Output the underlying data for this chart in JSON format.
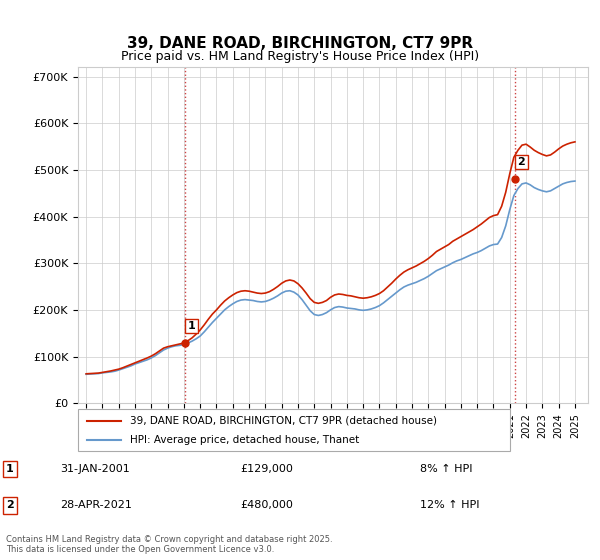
{
  "title": "39, DANE ROAD, BIRCHINGTON, CT7 9PR",
  "subtitle": "Price paid vs. HM Land Registry's House Price Index (HPI)",
  "ylabel_ticks": [
    "£0",
    "£100K",
    "£200K",
    "£300K",
    "£400K",
    "£500K",
    "£600K",
    "£700K"
  ],
  "ytick_values": [
    0,
    100000,
    200000,
    300000,
    400000,
    500000,
    600000,
    700000
  ],
  "ylim": [
    0,
    720000
  ],
  "xlim_start": 1994.5,
  "xlim_end": 2025.8,
  "xtick_years": [
    1995,
    1996,
    1997,
    1998,
    1999,
    2000,
    2001,
    2002,
    2003,
    2004,
    2005,
    2006,
    2007,
    2008,
    2009,
    2010,
    2011,
    2012,
    2013,
    2014,
    2015,
    2016,
    2017,
    2018,
    2019,
    2020,
    2021,
    2022,
    2023,
    2024,
    2025
  ],
  "hpi_color": "#6699cc",
  "price_color": "#cc2200",
  "marker_color_1": "#cc2200",
  "marker_color_2": "#cc2200",
  "sale1_x": 2001.08,
  "sale1_y": 129000,
  "sale1_label": "1",
  "sale2_x": 2021.33,
  "sale2_y": 480000,
  "sale2_label": "2",
  "vline_color": "#cc4444",
  "vline_style": ":",
  "grid_color": "#cccccc",
  "background_color": "#ffffff",
  "legend_line1": "39, DANE ROAD, BIRCHINGTON, CT7 9PR (detached house)",
  "legend_line2": "HPI: Average price, detached house, Thanet",
  "annotation1_date": "31-JAN-2001",
  "annotation1_price": "£129,000",
  "annotation1_hpi": "8% ↑ HPI",
  "annotation2_date": "28-APR-2021",
  "annotation2_price": "£480,000",
  "annotation2_hpi": "12% ↑ HPI",
  "footer": "Contains HM Land Registry data © Crown copyright and database right 2025.\nThis data is licensed under the Open Government Licence v3.0.",
  "hpi_data_x": [
    1995.0,
    1995.25,
    1995.5,
    1995.75,
    1996.0,
    1996.25,
    1996.5,
    1996.75,
    1997.0,
    1997.25,
    1997.5,
    1997.75,
    1998.0,
    1998.25,
    1998.5,
    1998.75,
    1999.0,
    1999.25,
    1999.5,
    1999.75,
    2000.0,
    2000.25,
    2000.5,
    2000.75,
    2001.0,
    2001.25,
    2001.5,
    2001.75,
    2002.0,
    2002.25,
    2002.5,
    2002.75,
    2003.0,
    2003.25,
    2003.5,
    2003.75,
    2004.0,
    2004.25,
    2004.5,
    2004.75,
    2005.0,
    2005.25,
    2005.5,
    2005.75,
    2006.0,
    2006.25,
    2006.5,
    2006.75,
    2007.0,
    2007.25,
    2007.5,
    2007.75,
    2008.0,
    2008.25,
    2008.5,
    2008.75,
    2009.0,
    2009.25,
    2009.5,
    2009.75,
    2010.0,
    2010.25,
    2010.5,
    2010.75,
    2011.0,
    2011.25,
    2011.5,
    2011.75,
    2012.0,
    2012.25,
    2012.5,
    2012.75,
    2013.0,
    2013.25,
    2013.5,
    2013.75,
    2014.0,
    2014.25,
    2014.5,
    2014.75,
    2015.0,
    2015.25,
    2015.5,
    2015.75,
    2016.0,
    2016.25,
    2016.5,
    2016.75,
    2017.0,
    2017.25,
    2017.5,
    2017.75,
    2018.0,
    2018.25,
    2018.5,
    2018.75,
    2019.0,
    2019.25,
    2019.5,
    2019.75,
    2020.0,
    2020.25,
    2020.5,
    2020.75,
    2021.0,
    2021.25,
    2021.5,
    2021.75,
    2022.0,
    2022.25,
    2022.5,
    2022.75,
    2023.0,
    2023.25,
    2023.5,
    2023.75,
    2024.0,
    2024.25,
    2024.5,
    2024.75,
    2025.0
  ],
  "hpi_data_y": [
    62000,
    62500,
    63000,
    63500,
    65000,
    66000,
    67000,
    68500,
    71000,
    74000,
    77000,
    80000,
    84000,
    87000,
    90000,
    93000,
    97000,
    102000,
    108000,
    114000,
    118000,
    121000,
    123000,
    124000,
    126000,
    129000,
    133000,
    138000,
    144000,
    153000,
    163000,
    173000,
    182000,
    191000,
    200000,
    207000,
    213000,
    218000,
    221000,
    222000,
    221000,
    220000,
    218000,
    217000,
    218000,
    221000,
    225000,
    230000,
    236000,
    240000,
    241000,
    238000,
    232000,
    222000,
    210000,
    198000,
    190000,
    188000,
    190000,
    194000,
    200000,
    205000,
    207000,
    206000,
    204000,
    203000,
    202000,
    200000,
    199000,
    200000,
    202000,
    205000,
    209000,
    215000,
    222000,
    229000,
    236000,
    243000,
    249000,
    253000,
    256000,
    259000,
    263000,
    267000,
    272000,
    278000,
    284000,
    288000,
    292000,
    296000,
    301000,
    305000,
    308000,
    312000,
    316000,
    320000,
    323000,
    327000,
    332000,
    337000,
    340000,
    341000,
    355000,
    380000,
    415000,
    445000,
    460000,
    470000,
    472000,
    468000,
    462000,
    458000,
    455000,
    453000,
    455000,
    460000,
    465000,
    470000,
    473000,
    475000,
    476000
  ],
  "price_data_x": [
    1995.0,
    1995.25,
    1995.5,
    1995.75,
    1996.0,
    1996.25,
    1996.5,
    1996.75,
    1997.0,
    1997.25,
    1997.5,
    1997.75,
    1998.0,
    1998.25,
    1998.5,
    1998.75,
    1999.0,
    1999.25,
    1999.5,
    1999.75,
    2000.0,
    2000.25,
    2000.5,
    2000.75,
    2001.0,
    2001.25,
    2001.5,
    2001.75,
    2002.0,
    2002.25,
    2002.5,
    2002.75,
    2003.0,
    2003.25,
    2003.5,
    2003.75,
    2004.0,
    2004.25,
    2004.5,
    2004.75,
    2005.0,
    2005.25,
    2005.5,
    2005.75,
    2006.0,
    2006.25,
    2006.5,
    2006.75,
    2007.0,
    2007.25,
    2007.5,
    2007.75,
    2008.0,
    2008.25,
    2008.5,
    2008.75,
    2009.0,
    2009.25,
    2009.5,
    2009.75,
    2010.0,
    2010.25,
    2010.5,
    2010.75,
    2011.0,
    2011.25,
    2011.5,
    2011.75,
    2012.0,
    2012.25,
    2012.5,
    2012.75,
    2013.0,
    2013.25,
    2013.5,
    2013.75,
    2014.0,
    2014.25,
    2014.5,
    2014.75,
    2015.0,
    2015.25,
    2015.5,
    2015.75,
    2016.0,
    2016.25,
    2016.5,
    2016.75,
    2017.0,
    2017.25,
    2017.5,
    2017.75,
    2018.0,
    2018.25,
    2018.5,
    2018.75,
    2019.0,
    2019.25,
    2019.5,
    2019.75,
    2020.0,
    2020.25,
    2020.5,
    2020.75,
    2021.0,
    2021.25,
    2021.5,
    2021.75,
    2022.0,
    2022.25,
    2022.5,
    2022.75,
    2023.0,
    2023.25,
    2023.5,
    2023.75,
    2024.0,
    2024.25,
    2024.5,
    2024.75,
    2025.0
  ],
  "price_data_y": [
    63000,
    63500,
    64000,
    64500,
    66000,
    67500,
    69000,
    71000,
    73000,
    76000,
    79500,
    83000,
    86500,
    90000,
    93500,
    97000,
    101000,
    106000,
    112000,
    118000,
    121000,
    123000,
    125000,
    127000,
    129000,
    134000,
    140000,
    148000,
    157000,
    168000,
    180000,
    191000,
    200000,
    210000,
    219000,
    226000,
    232000,
    237000,
    240000,
    241000,
    240000,
    238000,
    236000,
    235000,
    236000,
    239000,
    244000,
    250000,
    257000,
    262000,
    264000,
    262000,
    256000,
    247000,
    236000,
    224000,
    216000,
    214000,
    216000,
    220000,
    227000,
    232000,
    234000,
    233000,
    231000,
    230000,
    228000,
    226000,
    225000,
    226000,
    228000,
    231000,
    235000,
    241000,
    249000,
    257000,
    266000,
    274000,
    281000,
    286000,
    290000,
    294000,
    299000,
    304000,
    310000,
    317000,
    325000,
    330000,
    335000,
    340000,
    347000,
    352000,
    357000,
    362000,
    367000,
    372000,
    378000,
    384000,
    391000,
    398000,
    402000,
    404000,
    422000,
    452000,
    492000,
    527000,
    542000,
    553000,
    555000,
    549000,
    542000,
    537000,
    533000,
    530000,
    532000,
    538000,
    545000,
    551000,
    555000,
    558000,
    560000
  ]
}
